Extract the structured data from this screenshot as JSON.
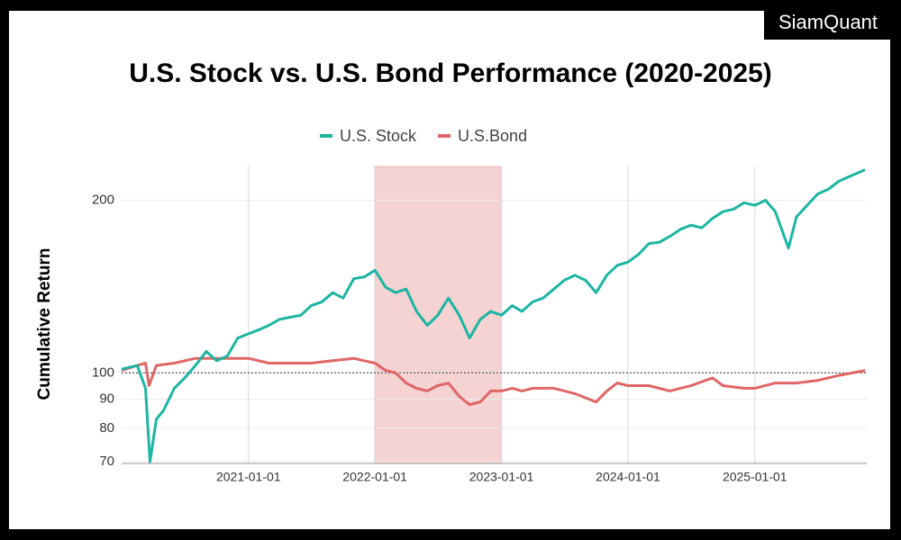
{
  "chart_data": {
    "type": "line",
    "title": "U.S. Stock vs. U.S. Bond Performance  (2020-2025)",
    "watermark": "SiamQuant",
    "y_label": "Cumulative Return",
    "log_y": true,
    "grid": true,
    "legend": "top",
    "reference_line": 100,
    "shaded_range": [
      "2022-01-01",
      "2023-01-01"
    ],
    "xlim": [
      "2020-01-01",
      "2025-11-20"
    ],
    "xticks": [
      "2021-01-01",
      "2022-01-01",
      "2023-01-01",
      "2024-01-01",
      "2025-01-01"
    ],
    "ylim": [
      69.5,
      229
    ],
    "yticks": [
      70,
      80,
      90,
      100,
      200
    ],
    "series": [
      {
        "name": "U.S. Stock",
        "color": "#1cb5a3",
        "x": [
          "2020-01-01",
          "2020-02-15",
          "2020-03-10",
          "2020-03-23",
          "2020-04-10",
          "2020-05-01",
          "2020-06-01",
          "2020-07-01",
          "2020-08-01",
          "2020-09-01",
          "2020-10-01",
          "2020-11-01",
          "2020-12-01",
          "2021-01-01",
          "2021-02-01",
          "2021-03-01",
          "2021-04-01",
          "2021-05-01",
          "2021-06-01",
          "2021-07-01",
          "2021-08-01",
          "2021-09-01",
          "2021-10-01",
          "2021-11-01",
          "2021-12-01",
          "2022-01-01",
          "2022-02-01",
          "2022-03-01",
          "2022-04-01",
          "2022-05-01",
          "2022-06-01",
          "2022-07-01",
          "2022-08-01",
          "2022-09-01",
          "2022-10-01",
          "2022-11-01",
          "2022-12-01",
          "2023-01-01",
          "2023-02-01",
          "2023-03-01",
          "2023-04-01",
          "2023-05-01",
          "2023-06-01",
          "2023-07-01",
          "2023-08-01",
          "2023-09-01",
          "2023-10-01",
          "2023-11-01",
          "2023-12-01",
          "2024-01-01",
          "2024-02-01",
          "2024-03-01",
          "2024-04-01",
          "2024-05-01",
          "2024-06-01",
          "2024-07-01",
          "2024-08-01",
          "2024-09-01",
          "2024-10-01",
          "2024-11-01",
          "2024-12-01",
          "2025-01-01",
          "2025-02-01",
          "2025-03-01",
          "2025-04-08",
          "2025-05-01",
          "2025-06-01",
          "2025-07-01",
          "2025-08-01",
          "2025-09-01",
          "2025-10-01",
          "2025-11-15"
        ],
        "values": [
          101.5,
          103,
          94,
          70,
          83,
          86,
          94,
          98,
          103,
          109,
          105,
          107,
          115,
          117,
          119,
          121,
          124,
          125,
          126,
          131,
          133,
          138,
          135,
          146,
          147,
          151,
          141,
          138,
          140,
          128,
          121,
          126,
          135,
          126,
          115,
          124,
          128,
          126,
          131,
          128,
          133,
          135,
          140,
          145,
          148,
          145,
          138,
          148,
          154,
          156,
          161,
          168,
          169,
          173,
          178,
          181,
          179,
          186,
          191,
          193,
          198,
          196,
          200,
          191,
          165,
          187,
          196,
          205,
          209,
          216,
          220,
          226
        ]
      },
      {
        "name": "U.S.Bond",
        "color": "#e06666",
        "x": [
          "2020-01-01",
          "2020-02-15",
          "2020-03-10",
          "2020-03-20",
          "2020-04-10",
          "2020-06-01",
          "2020-08-01",
          "2020-10-01",
          "2020-12-01",
          "2021-01-01",
          "2021-03-01",
          "2021-05-01",
          "2021-07-01",
          "2021-09-01",
          "2021-11-01",
          "2021-12-01",
          "2022-01-01",
          "2022-02-01",
          "2022-03-01",
          "2022-04-01",
          "2022-05-01",
          "2022-06-01",
          "2022-07-01",
          "2022-08-01",
          "2022-09-01",
          "2022-10-01",
          "2022-11-01",
          "2022-12-01",
          "2023-01-01",
          "2023-02-01",
          "2023-03-01",
          "2023-04-01",
          "2023-06-01",
          "2023-08-01",
          "2023-10-01",
          "2023-11-01",
          "2023-12-01",
          "2024-01-01",
          "2024-03-01",
          "2024-05-01",
          "2024-07-01",
          "2024-09-01",
          "2024-10-01",
          "2024-12-01",
          "2025-01-01",
          "2025-03-01",
          "2025-05-01",
          "2025-07-01",
          "2025-09-01",
          "2025-11-15"
        ],
        "values": [
          101,
          103,
          104,
          95,
          103,
          104,
          106,
          106,
          106,
          106,
          104,
          104,
          104,
          105,
          106,
          105,
          104,
          101,
          100,
          96,
          94,
          93,
          95,
          96,
          91,
          88,
          89,
          93,
          93,
          94,
          93,
          94,
          94,
          92,
          89,
          93,
          96,
          95,
          95,
          93,
          95,
          98,
          95,
          94,
          94,
          96,
          96,
          97,
          99,
          101
        ]
      }
    ]
  }
}
